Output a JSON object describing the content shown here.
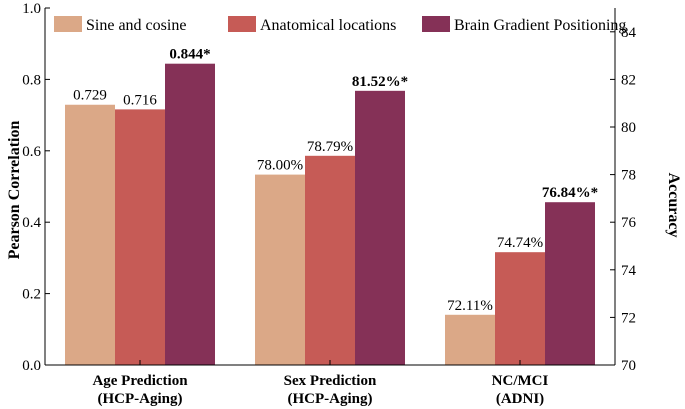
{
  "chart_data": {
    "type": "bar",
    "categories": [
      [
        "Age Prediction",
        "(HCP-Aging)"
      ],
      [
        "Sex Prediction",
        "(HCP-Aging)"
      ],
      [
        "NC/MCI",
        "(ADNI)"
      ]
    ],
    "series": [
      {
        "name": "Sine and cosine",
        "color": "#dba887",
        "values": [
          {
            "axis": "left",
            "value": 0.729,
            "label": "0.729",
            "bold": false
          },
          {
            "axis": "right",
            "value": 78.0,
            "label": "78.00%",
            "bold": false
          },
          {
            "axis": "right",
            "value": 72.11,
            "label": "72.11%",
            "bold": false
          }
        ]
      },
      {
        "name": "Anatomical locations",
        "color": "#c65b56",
        "values": [
          {
            "axis": "left",
            "value": 0.716,
            "label": "0.716",
            "bold": false
          },
          {
            "axis": "right",
            "value": 78.79,
            "label": "78.79%",
            "bold": false
          },
          {
            "axis": "right",
            "value": 74.74,
            "label": "74.74%",
            "bold": false
          }
        ]
      },
      {
        "name": "Brain Gradient Positioning",
        "color": "#853157",
        "values": [
          {
            "axis": "left",
            "value": 0.844,
            "label": "0.844*",
            "bold": true
          },
          {
            "axis": "right",
            "value": 81.52,
            "label": "81.52%*",
            "bold": true
          },
          {
            "axis": "right",
            "value": 76.84,
            "label": "76.84%*",
            "bold": true
          }
        ]
      }
    ],
    "left_axis": {
      "label": "Pearson Correlation",
      "ylim": [
        0.0,
        1.0
      ],
      "ticks": [
        "0.0",
        "0.2",
        "0.4",
        "0.6",
        "0.8",
        "1.0"
      ]
    },
    "right_axis": {
      "label": "Accuracy",
      "ylim": [
        70,
        85
      ],
      "ticks": [
        "70",
        "72",
        "74",
        "76",
        "78",
        "80",
        "82",
        "84"
      ]
    },
    "grid": false,
    "legend_position": "top"
  }
}
